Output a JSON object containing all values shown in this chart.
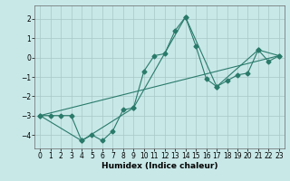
{
  "title": "",
  "xlabel": "Humidex (Indice chaleur)",
  "ylabel": "",
  "xlim": [
    -0.5,
    23.5
  ],
  "ylim": [
    -4.7,
    2.7
  ],
  "xticks": [
    0,
    1,
    2,
    3,
    4,
    5,
    6,
    7,
    8,
    9,
    10,
    11,
    12,
    13,
    14,
    15,
    16,
    17,
    18,
    19,
    20,
    21,
    22,
    23
  ],
  "yticks": [
    -4,
    -3,
    -2,
    -1,
    0,
    1,
    2
  ],
  "line_color": "#2a7a6a",
  "bg_color": "#c8e8e8",
  "grid_color": "#a8c8c8",
  "line1_x": [
    0,
    1,
    2,
    3,
    4,
    5,
    6,
    7,
    8,
    9,
    10,
    11,
    12,
    13,
    14,
    15,
    16,
    17,
    18,
    19,
    20,
    21,
    22,
    23
  ],
  "line1_y": [
    -3.0,
    -3.0,
    -3.0,
    -3.0,
    -4.3,
    -4.0,
    -4.3,
    -3.8,
    -2.7,
    -2.6,
    -0.7,
    0.1,
    0.2,
    1.4,
    2.1,
    0.6,
    -1.1,
    -1.5,
    -1.2,
    -0.9,
    -0.8,
    0.4,
    -0.2,
    0.1
  ],
  "line2_x": [
    0,
    4,
    9,
    14,
    17,
    21,
    23
  ],
  "line2_y": [
    -3.0,
    -4.3,
    -2.6,
    2.1,
    -1.5,
    0.4,
    0.1
  ],
  "line3_x": [
    0,
    23
  ],
  "line3_y": [
    -3.0,
    0.1
  ],
  "marker": "D",
  "markersize": 2.5,
  "linewidth": 0.8,
  "tick_fontsize": 5.5,
  "xlabel_fontsize": 6.5
}
